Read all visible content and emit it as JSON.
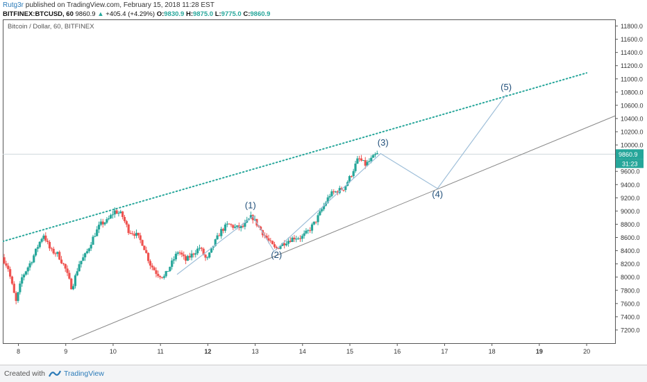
{
  "header": {
    "author": "Rutg3r",
    "published": "published on TradingView.com, February 15, 2018 11:28 EST",
    "symbol": "BITFINEX:BTCUSD, 60",
    "last": "9860.9",
    "change": "+405.4 (+4.29%)",
    "open_label": "O:",
    "open": "9830.9",
    "high_label": "H:",
    "high": "9875.0",
    "low_label": "L:",
    "low": "9775.0",
    "close_label": "C:",
    "close": "9860.9"
  },
  "chart_title": "Bitcoin / Dollar, 60, BITFINEX",
  "footer": {
    "created": "Created with",
    "brand": "TradingView"
  },
  "colors": {
    "up": "#26a69a",
    "down": "#ef5350",
    "channel": "#26a69a",
    "trendline": "#888888",
    "wave": "#9fbfd9",
    "label": "#1f4e79"
  },
  "chart_data": {
    "type": "candlestick",
    "title": "Bitcoin / Dollar, 60, BITFINEX",
    "x_ticks": [
      "8",
      "9",
      "10",
      "11",
      "12",
      "13",
      "14",
      "15",
      "16",
      "17",
      "18",
      "19",
      "20"
    ],
    "y_ticks": [
      7200,
      7400,
      7600,
      7800,
      8000,
      8200,
      8400,
      8600,
      8800,
      9000,
      9200,
      9400,
      9600,
      9800,
      10000,
      10200,
      10400,
      10600,
      10800,
      11000,
      11200,
      11400,
      11600,
      11800
    ],
    "y_tick_labels": [
      "7200.0",
      "7400.0",
      "7600.0",
      "7800.0",
      "8000.0",
      "8200.0",
      "8400.0",
      "8600.0",
      "8800.0",
      "9000.0",
      "9200.0",
      "9400.0",
      "9600.0",
      "9800.0",
      "10000.0",
      "10200.0",
      "10400.0",
      "10600.0",
      "10800.0",
      "11000.0",
      "11200.0",
      "11400.0",
      "11600.0",
      "11800.0"
    ],
    "ylim": [
      7000,
      11900
    ],
    "xlim": [
      7.67,
      20.6
    ],
    "last_price_label": "9860.9",
    "countdown_label": "31:23",
    "last_price": 9860.9,
    "price_path": [
      [
        7.68,
        8300
      ],
      [
        7.8,
        8150
      ],
      [
        7.97,
        7620
      ],
      [
        8.1,
        8000
      ],
      [
        8.3,
        8250
      ],
      [
        8.45,
        8500
      ],
      [
        8.55,
        8650
      ],
      [
        8.7,
        8400
      ],
      [
        8.85,
        8350
      ],
      [
        9.0,
        8150
      ],
      [
        9.15,
        7830
      ],
      [
        9.3,
        8200
      ],
      [
        9.45,
        8350
      ],
      [
        9.6,
        8600
      ],
      [
        9.75,
        8800
      ],
      [
        9.9,
        8850
      ],
      [
        10.05,
        9000
      ],
      [
        10.2,
        8950
      ],
      [
        10.35,
        8700
      ],
      [
        10.5,
        8650
      ],
      [
        10.65,
        8500
      ],
      [
        10.8,
        8200
      ],
      [
        10.95,
        8050
      ],
      [
        11.1,
        8000
      ],
      [
        11.25,
        8200
      ],
      [
        11.4,
        8400
      ],
      [
        11.55,
        8250
      ],
      [
        11.7,
        8350
      ],
      [
        11.85,
        8450
      ],
      [
        12.0,
        8250
      ],
      [
        12.15,
        8500
      ],
      [
        12.3,
        8700
      ],
      [
        12.45,
        8800
      ],
      [
        12.6,
        8750
      ],
      [
        12.75,
        8750
      ],
      [
        12.95,
        8920
      ],
      [
        13.15,
        8700
      ],
      [
        13.3,
        8550
      ],
      [
        13.45,
        8420
      ],
      [
        13.55,
        8480
      ],
      [
        13.7,
        8550
      ],
      [
        13.85,
        8600
      ],
      [
        14.0,
        8600
      ],
      [
        14.15,
        8700
      ],
      [
        14.3,
        8850
      ],
      [
        14.45,
        9050
      ],
      [
        14.6,
        9250
      ],
      [
        14.75,
        9300
      ],
      [
        14.9,
        9350
      ],
      [
        15.05,
        9550
      ],
      [
        15.2,
        9800
      ],
      [
        15.35,
        9700
      ],
      [
        15.5,
        9800
      ],
      [
        15.58,
        9860
      ]
    ],
    "channel_upper": [
      [
        7.67,
        8540
      ],
      [
        20.0,
        11090
      ]
    ],
    "trendline_lower": [
      [
        9.13,
        7050
      ],
      [
        20.6,
        10440
      ]
    ],
    "wave_path": [
      [
        11.35,
        8040
      ],
      [
        12.95,
        8920
      ],
      [
        13.4,
        8390
      ],
      [
        15.65,
        9870
      ],
      [
        16.85,
        9340
      ],
      [
        18.3,
        10760
      ]
    ],
    "wave_labels": [
      {
        "label": "(1)",
        "x": 12.9,
        "y": 9040
      },
      {
        "label": "(2)",
        "x": 13.45,
        "y": 8290
      },
      {
        "label": "(3)",
        "x": 15.7,
        "y": 9990
      },
      {
        "label": "(4)",
        "x": 16.85,
        "y": 9210
      },
      {
        "label": "(5)",
        "x": 18.3,
        "y": 10830
      }
    ]
  }
}
